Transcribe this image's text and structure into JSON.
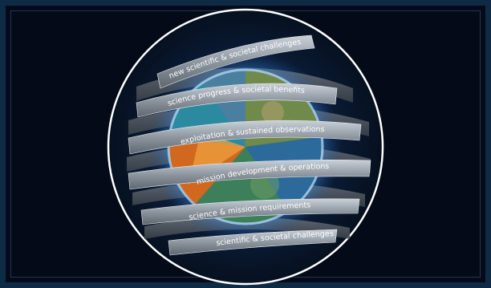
{
  "ribbons": [
    {
      "label": "new scientific & societal challenges"
    },
    {
      "label": "science progress & societal benefits"
    },
    {
      "label": "exploitation & sustained observations"
    },
    {
      "label": "mission development & operations"
    },
    {
      "label": "science & mission requirements"
    },
    {
      "label": "scientific & societal challenges"
    }
  ],
  "colors": {
    "background": "#040a17",
    "frame": "#0f2a44",
    "circle_outline": "#ffffff",
    "globe_glow": "#5fb2ff",
    "ribbon": "#aab3bd"
  }
}
